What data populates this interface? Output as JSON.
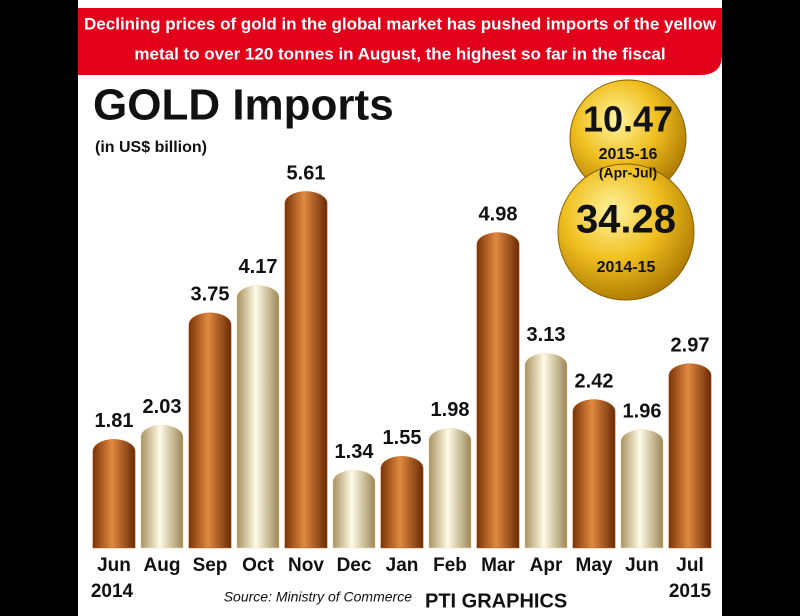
{
  "chart_data": {
    "type": "bar",
    "banner": [
      "Declining prices of gold in the global market has pushed imports of the yellow",
      "metal to over 120 tonnes in August, the highest so far in the fiscal"
    ],
    "title": "GOLD Imports",
    "subtitle": "(in US$ billion)",
    "badges": [
      {
        "value": 10.47,
        "lines": [
          "2015-16",
          "(Apr-Jul)"
        ]
      },
      {
        "value": 34.28,
        "lines": [
          "2014-15"
        ]
      }
    ],
    "categories": [
      "Jun",
      "Aug",
      "Sep",
      "Oct",
      "Nov",
      "Dec",
      "Jan",
      "Feb",
      "Mar",
      "Apr",
      "May",
      "Jun",
      "Jul"
    ],
    "values": [
      1.81,
      2.03,
      3.75,
      4.17,
      5.61,
      1.34,
      1.55,
      1.98,
      4.98,
      3.13,
      2.42,
      1.96,
      2.97
    ],
    "colors": [
      "#c4611c",
      "#f1e4b6",
      "#c4611c",
      "#f1e4b6",
      "#c4611c",
      "#f1e4b6",
      "#c4611c",
      "#f1e4b6",
      "#c4611c",
      "#f1e4b6",
      "#c4611c",
      "#f1e4b6",
      "#c4611c"
    ],
    "year_start": "2014",
    "year_end": "2015",
    "source": "Source: Ministry of Commerce",
    "credit": "PTI GRAPHICS"
  }
}
